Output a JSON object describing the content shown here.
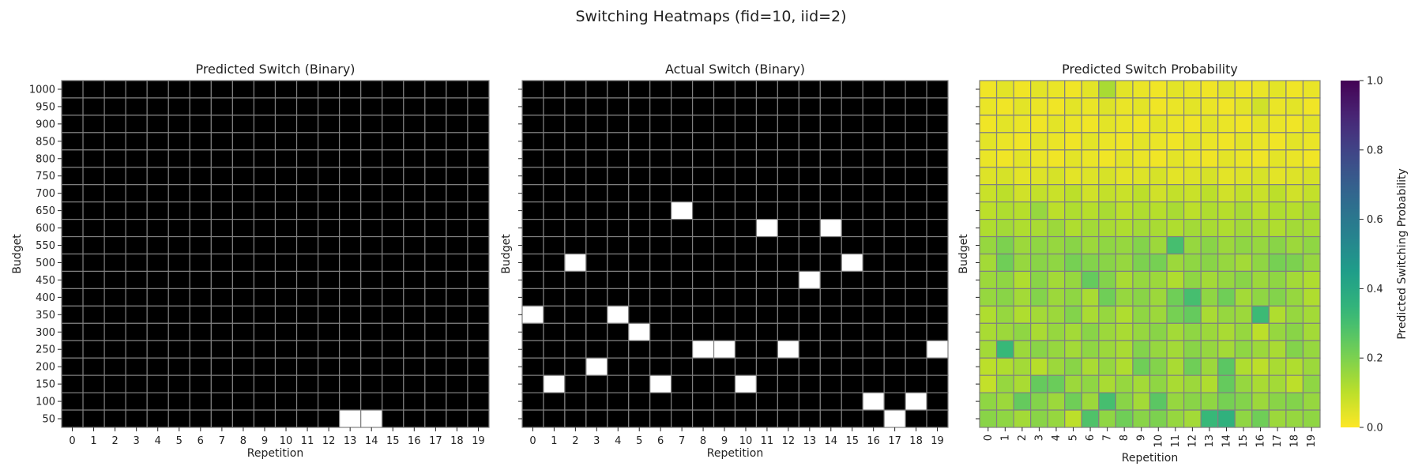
{
  "figure": {
    "title": "Switching Heatmaps (fid=10, iid=2)"
  },
  "chart_data": [
    {
      "type": "heatmap",
      "title": "Predicted Switch (Binary)",
      "xlabel": "Repetition",
      "ylabel": "Budget",
      "x": [
        0,
        1,
        2,
        3,
        4,
        5,
        6,
        7,
        8,
        9,
        10,
        11,
        12,
        13,
        14,
        15,
        16,
        17,
        18,
        19
      ],
      "y": [
        1000,
        950,
        900,
        850,
        800,
        750,
        700,
        650,
        600,
        550,
        500,
        450,
        400,
        350,
        300,
        250,
        200,
        150,
        100,
        50
      ],
      "colormap": {
        "0": "#000000",
        "1": "#ffffff"
      },
      "ones": [
        [
          50,
          13
        ],
        [
          50,
          14
        ]
      ]
    },
    {
      "type": "heatmap",
      "title": "Actual Switch (Binary)",
      "xlabel": "Repetition",
      "ylabel": "Budget",
      "x": [
        0,
        1,
        2,
        3,
        4,
        5,
        6,
        7,
        8,
        9,
        10,
        11,
        12,
        13,
        14,
        15,
        16,
        17,
        18,
        19
      ],
      "y": [
        1000,
        950,
        900,
        850,
        800,
        750,
        700,
        650,
        600,
        550,
        500,
        450,
        400,
        350,
        300,
        250,
        200,
        150,
        100,
        50
      ],
      "colormap": {
        "0": "#000000",
        "1": "#ffffff"
      },
      "ones": [
        [
          650,
          7
        ],
        [
          600,
          11
        ],
        [
          600,
          14
        ],
        [
          500,
          2
        ],
        [
          500,
          15
        ],
        [
          450,
          13
        ],
        [
          350,
          0
        ],
        [
          350,
          4
        ],
        [
          300,
          5
        ],
        [
          250,
          8
        ],
        [
          250,
          9
        ],
        [
          250,
          12
        ],
        [
          250,
          19
        ],
        [
          200,
          3
        ],
        [
          150,
          1
        ],
        [
          150,
          6
        ],
        [
          150,
          10
        ],
        [
          100,
          16
        ],
        [
          100,
          18
        ],
        [
          50,
          17
        ]
      ]
    },
    {
      "type": "heatmap",
      "title": "Predicted Switch Probability",
      "xlabel": "Repetition",
      "ylabel": "Budget",
      "x": [
        0,
        1,
        2,
        3,
        4,
        5,
        6,
        7,
        8,
        9,
        10,
        11,
        12,
        13,
        14,
        15,
        16,
        17,
        18,
        19
      ],
      "y": [
        1000,
        950,
        900,
        850,
        800,
        750,
        700,
        650,
        600,
        550,
        500,
        450,
        400,
        350,
        300,
        250,
        200,
        150,
        100,
        50
      ],
      "colormap": "viridis_r",
      "vmin": 0,
      "vmax": 1,
      "colorbar_label": "Predicted Switching Probability",
      "colorbar_ticks": [
        "0.0",
        "0.2",
        "0.4",
        "0.6",
        "0.8",
        "1.0"
      ],
      "values": [
        [
          0.02,
          0.04,
          0.02,
          0.04,
          0.03,
          0.02,
          0.04,
          0.13,
          0.04,
          0.03,
          0.02,
          0.04,
          0.03,
          0.02,
          0.04,
          0.02,
          0.03,
          0.04,
          0.02,
          0.03
        ],
        [
          0.03,
          0.02,
          0.04,
          0.03,
          0.02,
          0.04,
          0.03,
          0.05,
          0.03,
          0.04,
          0.02,
          0.03,
          0.04,
          0.03,
          0.02,
          0.04,
          0.07,
          0.03,
          0.04,
          0.02
        ],
        [
          0.02,
          0.04,
          0.03,
          0.02,
          0.04,
          0.03,
          0.02,
          0.04,
          0.03,
          0.02,
          0.04,
          0.03,
          0.02,
          0.04,
          0.03,
          0.02,
          0.04,
          0.03,
          0.02,
          0.04
        ],
        [
          0.04,
          0.03,
          0.02,
          0.04,
          0.03,
          0.02,
          0.04,
          0.03,
          0.02,
          0.04,
          0.03,
          0.02,
          0.04,
          0.03,
          0.02,
          0.04,
          0.03,
          0.02,
          0.04,
          0.03
        ],
        [
          0.03,
          0.02,
          0.04,
          0.03,
          0.02,
          0.04,
          0.03,
          0.02,
          0.04,
          0.03,
          0.02,
          0.04,
          0.03,
          0.02,
          0.04,
          0.03,
          0.02,
          0.04,
          0.03,
          0.02
        ],
        [
          0.05,
          0.06,
          0.04,
          0.05,
          0.06,
          0.04,
          0.05,
          0.06,
          0.04,
          0.05,
          0.06,
          0.04,
          0.05,
          0.06,
          0.04,
          0.05,
          0.06,
          0.04,
          0.05,
          0.06
        ],
        [
          0.08,
          0.1,
          0.07,
          0.09,
          0.08,
          0.1,
          0.07,
          0.09,
          0.08,
          0.1,
          0.07,
          0.09,
          0.08,
          0.1,
          0.07,
          0.09,
          0.08,
          0.1,
          0.07,
          0.09
        ],
        [
          0.1,
          0.12,
          0.11,
          0.16,
          0.1,
          0.12,
          0.11,
          0.13,
          0.1,
          0.12,
          0.11,
          0.13,
          0.1,
          0.12,
          0.11,
          0.13,
          0.1,
          0.12,
          0.11,
          0.13
        ],
        [
          0.12,
          0.14,
          0.12,
          0.13,
          0.15,
          0.12,
          0.14,
          0.13,
          0.12,
          0.14,
          0.13,
          0.12,
          0.14,
          0.13,
          0.12,
          0.14,
          0.13,
          0.12,
          0.14,
          0.13
        ],
        [
          0.16,
          0.2,
          0.15,
          0.17,
          0.16,
          0.18,
          0.15,
          0.17,
          0.16,
          0.19,
          0.15,
          0.3,
          0.16,
          0.18,
          0.15,
          0.17,
          0.16,
          0.18,
          0.15,
          0.17
        ],
        [
          0.14,
          0.22,
          0.16,
          0.18,
          0.17,
          0.21,
          0.19,
          0.18,
          0.16,
          0.2,
          0.21,
          0.15,
          0.17,
          0.18,
          0.16,
          0.14,
          0.17,
          0.21,
          0.2,
          0.16
        ],
        [
          0.15,
          0.17,
          0.12,
          0.18,
          0.14,
          0.16,
          0.24,
          0.19,
          0.13,
          0.16,
          0.15,
          0.12,
          0.17,
          0.14,
          0.16,
          0.18,
          0.15,
          0.17,
          0.14,
          0.12
        ],
        [
          0.16,
          0.18,
          0.14,
          0.19,
          0.15,
          0.17,
          0.13,
          0.22,
          0.16,
          0.18,
          0.15,
          0.22,
          0.3,
          0.17,
          0.22,
          0.14,
          0.17,
          0.19,
          0.16,
          0.12
        ],
        [
          0.12,
          0.16,
          0.12,
          0.14,
          0.15,
          0.19,
          0.13,
          0.16,
          0.12,
          0.17,
          0.15,
          0.21,
          0.24,
          0.13,
          0.16,
          0.15,
          0.32,
          0.12,
          0.16,
          0.14
        ],
        [
          0.13,
          0.15,
          0.17,
          0.13,
          0.16,
          0.14,
          0.18,
          0.15,
          0.13,
          0.16,
          0.18,
          0.14,
          0.17,
          0.15,
          0.13,
          0.16,
          0.1,
          0.16,
          0.18,
          0.14
        ],
        [
          0.14,
          0.33,
          0.15,
          0.18,
          0.16,
          0.14,
          0.17,
          0.15,
          0.13,
          0.19,
          0.16,
          0.14,
          0.18,
          0.16,
          0.14,
          0.17,
          0.15,
          0.13,
          0.19,
          0.16
        ],
        [
          0.1,
          0.12,
          0.14,
          0.11,
          0.15,
          0.18,
          0.13,
          0.16,
          0.12,
          0.22,
          0.19,
          0.13,
          0.22,
          0.15,
          0.26,
          0.12,
          0.1,
          0.13,
          0.12,
          0.15
        ],
        [
          0.09,
          0.16,
          0.13,
          0.24,
          0.23,
          0.15,
          0.17,
          0.13,
          0.16,
          0.14,
          0.17,
          0.13,
          0.15,
          0.12,
          0.24,
          0.16,
          0.13,
          0.14,
          0.1,
          0.17
        ],
        [
          0.17,
          0.15,
          0.24,
          0.19,
          0.15,
          0.22,
          0.15,
          0.3,
          0.18,
          0.14,
          0.26,
          0.16,
          0.18,
          0.17,
          0.21,
          0.19,
          0.15,
          0.18,
          0.19,
          0.16
        ],
        [
          0.18,
          0.17,
          0.14,
          0.18,
          0.16,
          0.1,
          0.28,
          0.17,
          0.22,
          0.18,
          0.2,
          0.16,
          0.14,
          0.33,
          0.36,
          0.17,
          0.22,
          0.15,
          0.16,
          0.17
        ]
      ]
    }
  ]
}
